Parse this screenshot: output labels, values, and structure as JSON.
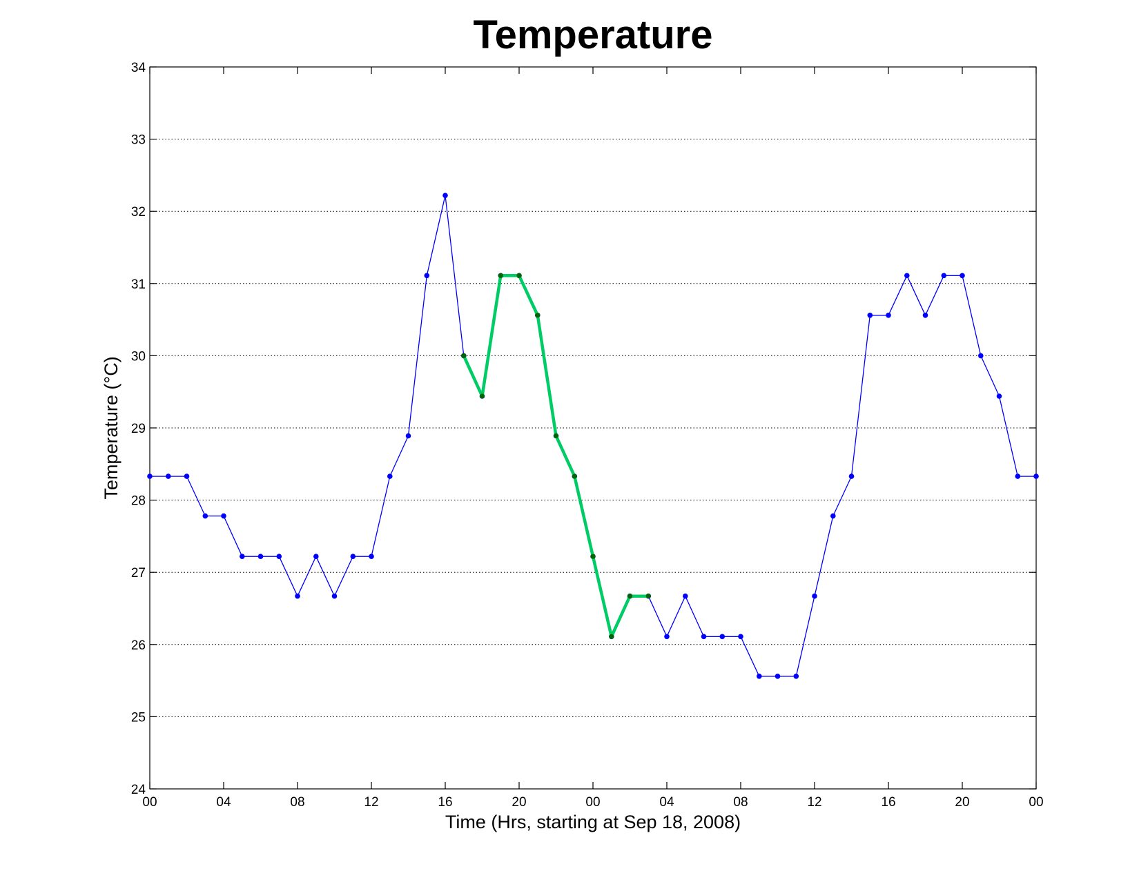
{
  "chart_data": {
    "type": "line",
    "title": "Temperature",
    "xlabel": "Time (Hrs, starting at Sep 18, 2008)",
    "ylabel": "Temperature (°C)",
    "xlim": [
      "2008-09-18 00:00",
      "2008-09-20 00:00"
    ],
    "ylim": [
      24,
      34
    ],
    "grid": "y dotted",
    "x_ticks": [
      "2008-09-18 00:00",
      "2008-09-18 04:00",
      "2008-09-18 08:00",
      "2008-09-18 12:00",
      "2008-09-18 16:00",
      "2008-09-18 20:00",
      "2008-09-19 00:00",
      "2008-09-19 04:00",
      "2008-09-19 08:00",
      "2008-09-19 12:00",
      "2008-09-19 16:00",
      "2008-09-19 20:00",
      "2008-09-20 00:00"
    ],
    "x_tick_labels": [
      "00",
      "04",
      "08",
      "12",
      "16",
      "20",
      "00",
      "04",
      "08",
      "12",
      "16",
      "20",
      "00"
    ],
    "y_ticks": [
      24,
      25,
      26,
      27,
      28,
      29,
      30,
      31,
      32,
      33,
      34
    ],
    "y_tick_labels": [
      "24",
      "25",
      "26",
      "27",
      "28",
      "29",
      "30",
      "31",
      "32",
      "33",
      "34"
    ],
    "x": [
      "2008-09-18 00:00",
      "2008-09-18 01:00",
      "2008-09-18 02:00",
      "2008-09-18 03:00",
      "2008-09-18 04:00",
      "2008-09-18 05:00",
      "2008-09-18 06:00",
      "2008-09-18 07:00",
      "2008-09-18 08:00",
      "2008-09-18 09:00",
      "2008-09-18 10:00",
      "2008-09-18 11:00",
      "2008-09-18 12:00",
      "2008-09-18 13:00",
      "2008-09-18 14:00",
      "2008-09-18 15:00",
      "2008-09-18 16:00",
      "2008-09-18 17:00",
      "2008-09-18 18:00",
      "2008-09-18 19:00",
      "2008-09-18 20:00",
      "2008-09-18 21:00",
      "2008-09-18 22:00",
      "2008-09-18 23:00",
      "2008-09-19 00:00",
      "2008-09-19 01:00",
      "2008-09-19 02:00",
      "2008-09-19 03:00",
      "2008-09-19 04:00",
      "2008-09-19 05:00",
      "2008-09-19 06:00",
      "2008-09-19 07:00",
      "2008-09-19 08:00",
      "2008-09-19 09:00",
      "2008-09-19 10:00",
      "2008-09-19 11:00",
      "2008-09-19 12:00",
      "2008-09-19 13:00",
      "2008-09-19 14:00",
      "2008-09-19 15:00",
      "2008-09-19 16:00",
      "2008-09-19 17:00",
      "2008-09-19 18:00",
      "2008-09-19 19:00",
      "2008-09-19 20:00",
      "2008-09-19 21:00",
      "2008-09-19 22:00",
      "2008-09-19 23:00",
      "2008-09-20 00:00"
    ],
    "series": [
      {
        "color": "#0000ff",
        "marker": "dot",
        "values": [
          28.33,
          28.33,
          28.33,
          27.78,
          27.78,
          27.22,
          27.22,
          27.22,
          26.67,
          27.22,
          26.67,
          27.22,
          27.22,
          28.33,
          28.89,
          31.11,
          32.22,
          30.0,
          29.44,
          31.11,
          31.11,
          30.56,
          28.89,
          28.33,
          27.22,
          26.11,
          26.67,
          26.67,
          26.11,
          26.67,
          26.11,
          26.11,
          26.11,
          25.56,
          25.56,
          25.56,
          26.67,
          27.78,
          28.33,
          30.56,
          30.56,
          31.11,
          30.56,
          31.11,
          31.11,
          30.0,
          29.44,
          28.33,
          28.33
        ]
      },
      {
        "color": "#00cc66",
        "marker": "dot",
        "marker_color": "#006600",
        "x": [
          "2008-09-18 17:00",
          "2008-09-18 18:00",
          "2008-09-18 19:00",
          "2008-09-18 20:00",
          "2008-09-18 21:00",
          "2008-09-18 22:00",
          "2008-09-18 23:00",
          "2008-09-19 00:00",
          "2008-09-19 01:00",
          "2008-09-19 02:00",
          "2008-09-19 03:00"
        ],
        "values": [
          30.0,
          29.44,
          31.11,
          31.11,
          30.56,
          28.89,
          28.33,
          27.22,
          26.11,
          26.67,
          26.67
        ]
      }
    ]
  }
}
